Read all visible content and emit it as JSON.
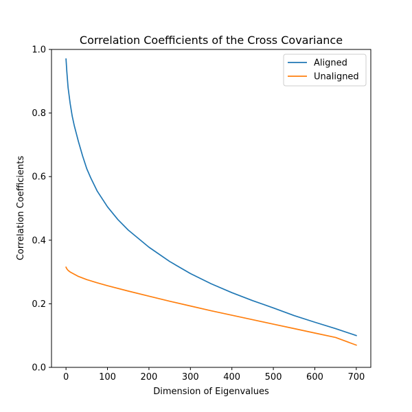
{
  "chart_data": {
    "type": "line",
    "title": "Correlation Coefficients of the Cross Covariance",
    "xlabel": "Dimension of Eigenvalues",
    "ylabel": "Correlation Coefficients",
    "xlim": [
      -35,
      735
    ],
    "ylim": [
      0.0,
      1.0
    ],
    "xticks": [
      0,
      100,
      200,
      300,
      400,
      500,
      600,
      700
    ],
    "xtick_labels": [
      "0",
      "100",
      "200",
      "300",
      "400",
      "500",
      "600",
      "700"
    ],
    "yticks": [
      0.0,
      0.2,
      0.4,
      0.6,
      0.8,
      1.0
    ],
    "ytick_labels": [
      "0.0",
      "0.2",
      "0.4",
      "0.6",
      "0.8",
      "1.0"
    ],
    "grid": false,
    "legend_position": "top-right",
    "series": [
      {
        "name": "Aligned",
        "color": "#1f77b4",
        "x": [
          0,
          2,
          5,
          10,
          15,
          20,
          25,
          30,
          40,
          50,
          60,
          75,
          100,
          125,
          150,
          175,
          200,
          250,
          300,
          350,
          400,
          450,
          500,
          550,
          600,
          650,
          700
        ],
        "y": [
          0.97,
          0.93,
          0.88,
          0.83,
          0.79,
          0.76,
          0.735,
          0.71,
          0.665,
          0.625,
          0.595,
          0.555,
          0.505,
          0.465,
          0.432,
          0.405,
          0.378,
          0.333,
          0.295,
          0.263,
          0.235,
          0.21,
          0.187,
          0.163,
          0.142,
          0.122,
          0.1
        ]
      },
      {
        "name": "Unaligned",
        "color": "#ff7f0e",
        "x": [
          0,
          2,
          5,
          10,
          20,
          30,
          50,
          75,
          100,
          150,
          200,
          250,
          300,
          350,
          400,
          450,
          500,
          550,
          600,
          650,
          700
        ],
        "y": [
          0.315,
          0.31,
          0.305,
          0.3,
          0.293,
          0.286,
          0.276,
          0.266,
          0.257,
          0.24,
          0.224,
          0.208,
          0.193,
          0.178,
          0.164,
          0.15,
          0.136,
          0.122,
          0.108,
          0.094,
          0.07
        ]
      }
    ]
  }
}
